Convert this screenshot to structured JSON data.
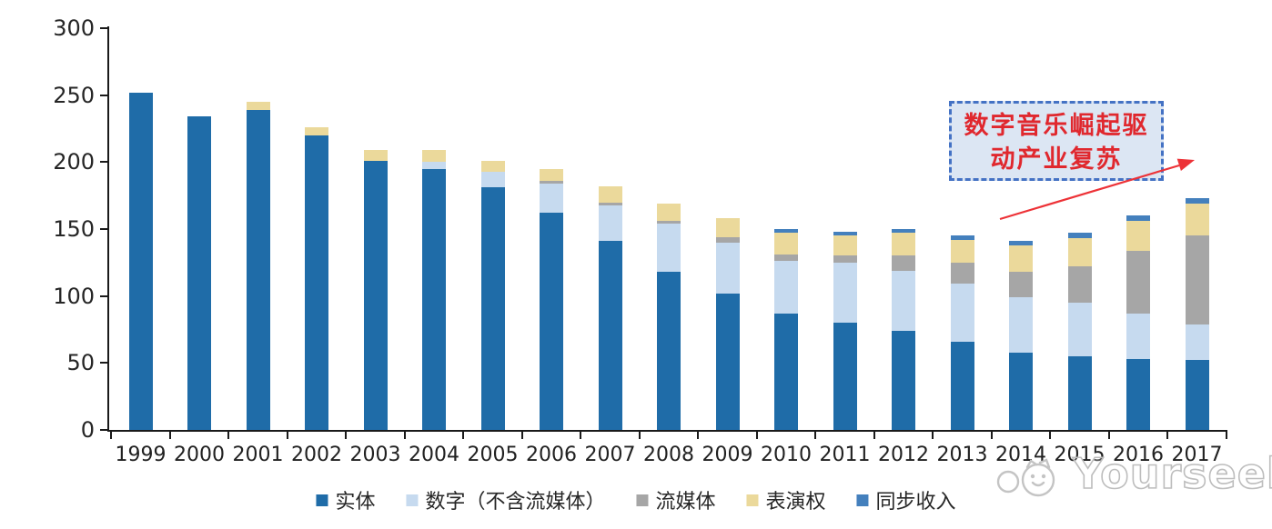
{
  "chart_data": {
    "type": "bar",
    "stacked": true,
    "title": "",
    "xlabel": "",
    "ylabel": "",
    "categories": [
      "1999",
      "2000",
      "2001",
      "2002",
      "2003",
      "2004",
      "2005",
      "2006",
      "2007",
      "2008",
      "2009",
      "2010",
      "2011",
      "2012",
      "2013",
      "2014",
      "2015",
      "2016",
      "2017"
    ],
    "series": [
      {
        "name": "实体",
        "color": "#1f6ca8",
        "values": [
          252,
          234,
          239,
          220,
          201,
          195,
          181,
          162,
          141,
          118,
          102,
          87,
          80,
          74,
          66,
          58,
          55,
          53,
          52
        ]
      },
      {
        "name": "数字（不含流媒体）",
        "color": "#c6daef",
        "values": [
          0,
          0,
          0,
          0,
          0,
          5,
          12,
          22,
          27,
          36,
          38,
          39,
          45,
          45,
          43,
          41,
          40,
          34,
          27
        ]
      },
      {
        "name": "流媒体",
        "color": "#a6a6a6",
        "values": [
          0,
          0,
          0,
          0,
          0,
          0,
          0,
          2,
          2,
          2,
          4,
          5,
          5,
          11,
          16,
          19,
          27,
          47,
          66
        ]
      },
      {
        "name": "表演权",
        "color": "#ebd99b",
        "values": [
          0,
          0,
          6,
          6,
          8,
          9,
          8,
          9,
          12,
          13,
          14,
          16,
          15,
          17,
          17,
          20,
          21,
          22,
          24
        ]
      },
      {
        "name": "同步收入",
        "color": "#4480bd",
        "values": [
          0,
          0,
          0,
          0,
          0,
          0,
          0,
          0,
          0,
          0,
          0,
          3,
          3,
          3,
          3,
          3,
          4,
          4,
          4
        ]
      }
    ],
    "ylim": [
      0,
      300
    ],
    "yticks": [
      0,
      50,
      100,
      150,
      200,
      250,
      300
    ],
    "grid": false,
    "legend_position": "bottom",
    "axis_color": "#1a1a1a",
    "tick_label_color": "#262626"
  },
  "annotation": {
    "line1": "数字音乐崛起驱",
    "line2": "动产业复苏",
    "text_color": "#e0282e",
    "border_color": "#4472c4",
    "fill_color": "#dce6f3",
    "arrow_color": "#ed3237"
  },
  "watermark": {
    "text": "Yourseeker",
    "color": "#bdbdbd"
  }
}
